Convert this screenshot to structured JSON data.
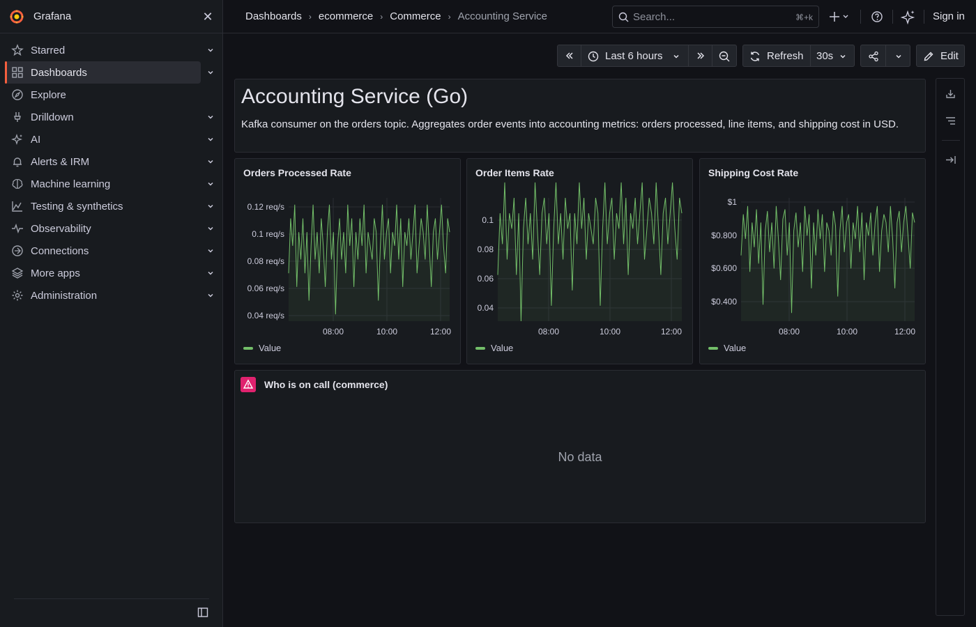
{
  "app": {
    "brand": "Grafana"
  },
  "sidebar": {
    "items": [
      {
        "label": "Starred",
        "icon": "star-icon",
        "expandable": true
      },
      {
        "label": "Dashboards",
        "icon": "dashboards-grid-icon",
        "expandable": true,
        "active": true
      },
      {
        "label": "Explore",
        "icon": "compass-icon",
        "expandable": false
      },
      {
        "label": "Drilldown",
        "icon": "drilldown-icon",
        "expandable": true
      },
      {
        "label": "AI",
        "icon": "sparkle-icon",
        "expandable": true
      },
      {
        "label": "Alerts & IRM",
        "icon": "bell-icon",
        "expandable": true
      },
      {
        "label": "Machine learning",
        "icon": "brain-icon",
        "expandable": true
      },
      {
        "label": "Testing & synthetics",
        "icon": "chart-mountain-icon",
        "expandable": true
      },
      {
        "label": "Observability",
        "icon": "pulse-icon",
        "expandable": true
      },
      {
        "label": "Connections",
        "icon": "link-icon",
        "expandable": true
      },
      {
        "label": "More apps",
        "icon": "layers-icon",
        "expandable": true
      },
      {
        "label": "Administration",
        "icon": "gear-icon",
        "expandable": true
      }
    ]
  },
  "breadcrumbs": [
    "Dashboards",
    "ecommerce",
    "Commerce",
    "Accounting Service"
  ],
  "search": {
    "placeholder": "Search...",
    "shortcut": "⌘+k"
  },
  "topbar": {
    "signin": "Sign in"
  },
  "controls": {
    "time_range": "Last 6 hours",
    "refresh": "Refresh",
    "interval": "30s",
    "edit": "Edit"
  },
  "text_panel": {
    "title": "Accounting Service (Go)",
    "description": "Kafka consumer on the orders topic. Aggregates order events into accounting metrics: orders processed, line items, and shipping cost in USD."
  },
  "oncall": {
    "title": "Who is on call (commerce)",
    "empty": "No data"
  },
  "colors": {
    "series": "#73bf69",
    "accent": "#f55f3e",
    "oncall": "#e0226e"
  },
  "chart_data": [
    {
      "type": "line",
      "title": "Orders Processed Rate",
      "series": [
        {
          "name": "Value",
          "values": [
            0.07,
            0.11,
            0.09,
            0.12,
            0.06,
            0.1,
            0.08,
            0.11,
            0.07,
            0.1,
            0.05,
            0.09,
            0.12,
            0.08,
            0.1,
            0.07,
            0.11,
            0.09,
            0.06,
            0.1,
            0.12,
            0.08,
            0.1,
            0.04,
            0.09,
            0.11,
            0.08,
            0.1,
            0.07,
            0.12,
            0.09,
            0.11,
            0.06,
            0.1,
            0.08,
            0.11,
            0.09,
            0.12,
            0.07,
            0.1,
            0.09,
            0.08,
            0.11,
            0.1,
            0.05,
            0.09,
            0.12,
            0.08,
            0.1,
            0.11,
            0.07,
            0.1,
            0.09,
            0.12,
            0.08,
            0.11,
            0.06,
            0.1,
            0.09,
            0.11,
            0.08,
            0.1,
            0.12,
            0.07,
            0.09,
            0.11,
            0.1,
            0.08,
            0.12,
            0.09,
            0.06,
            0.1,
            0.11,
            0.08,
            0.1,
            0.12,
            0.09,
            0.07,
            0.11,
            0.1
          ]
        }
      ],
      "y_ticks": [
        "0.04 req/s",
        "0.06 req/s",
        "0.08 req/s",
        "0.1 req/s",
        "0.12 req/s"
      ],
      "x_ticks": [
        "08:00",
        "10:00",
        "12:00"
      ],
      "ylim": [
        0.035,
        0.125
      ]
    },
    {
      "type": "line",
      "title": "Order Items Rate",
      "series": [
        {
          "name": "Value",
          "values": [
            0.06,
            0.1,
            0.08,
            0.12,
            0.07,
            0.1,
            0.09,
            0.11,
            0.06,
            0.1,
            0.03,
            0.09,
            0.11,
            0.08,
            0.1,
            0.07,
            0.12,
            0.09,
            0.06,
            0.1,
            0.11,
            0.08,
            0.1,
            0.04,
            0.09,
            0.12,
            0.08,
            0.1,
            0.07,
            0.11,
            0.09,
            0.1,
            0.05,
            0.1,
            0.08,
            0.12,
            0.09,
            0.11,
            0.07,
            0.1,
            0.09,
            0.08,
            0.11,
            0.1,
            0.04,
            0.09,
            0.12,
            0.08,
            0.1,
            0.11,
            0.07,
            0.1,
            0.09,
            0.12,
            0.08,
            0.11,
            0.06,
            0.1,
            0.09,
            0.11,
            0.08,
            0.1,
            0.12,
            0.07,
            0.09,
            0.11,
            0.1,
            0.08,
            0.12,
            0.09,
            0.06,
            0.1,
            0.11,
            0.08,
            0.1,
            0.12,
            0.09,
            0.07,
            0.11,
            0.1
          ]
        }
      ],
      "y_ticks": [
        "0.04",
        "0.06",
        "0.08",
        "0.1"
      ],
      "x_ticks": [
        "08:00",
        "10:00",
        "12:00"
      ],
      "ylim": [
        0.03,
        0.11
      ]
    },
    {
      "type": "line",
      "title": "Shipping Cost Rate",
      "series": [
        {
          "name": "Value",
          "values": [
            0.7,
            0.95,
            0.8,
            1.0,
            0.6,
            0.9,
            0.75,
            0.98,
            0.65,
            0.9,
            0.4,
            0.85,
            0.97,
            0.72,
            0.9,
            0.62,
            1.0,
            0.8,
            0.55,
            0.92,
            0.98,
            0.7,
            0.9,
            0.35,
            0.85,
            0.96,
            0.75,
            0.9,
            0.6,
            1.0,
            0.82,
            0.95,
            0.5,
            0.9,
            0.7,
            0.98,
            0.8,
            0.95,
            0.6,
            0.9,
            0.85,
            0.7,
            0.97,
            0.88,
            0.45,
            0.85,
            1.0,
            0.72,
            0.9,
            0.95,
            0.62,
            0.9,
            0.8,
            1.0,
            0.72,
            0.96,
            0.55,
            0.9,
            0.82,
            0.96,
            0.7,
            0.9,
            1.0,
            0.6,
            0.85,
            0.95,
            0.9,
            0.72,
            1.0,
            0.8,
            0.5,
            0.9,
            0.97,
            0.72,
            0.9,
            1.0,
            0.82,
            0.62,
            0.96,
            0.9
          ]
        }
      ],
      "y_ticks": [
        "$0.400",
        "$0.600",
        "$0.800",
        "$1"
      ],
      "x_ticks": [
        "08:00",
        "10:00",
        "12:00"
      ],
      "ylim": [
        0.3,
        1.05
      ]
    }
  ]
}
